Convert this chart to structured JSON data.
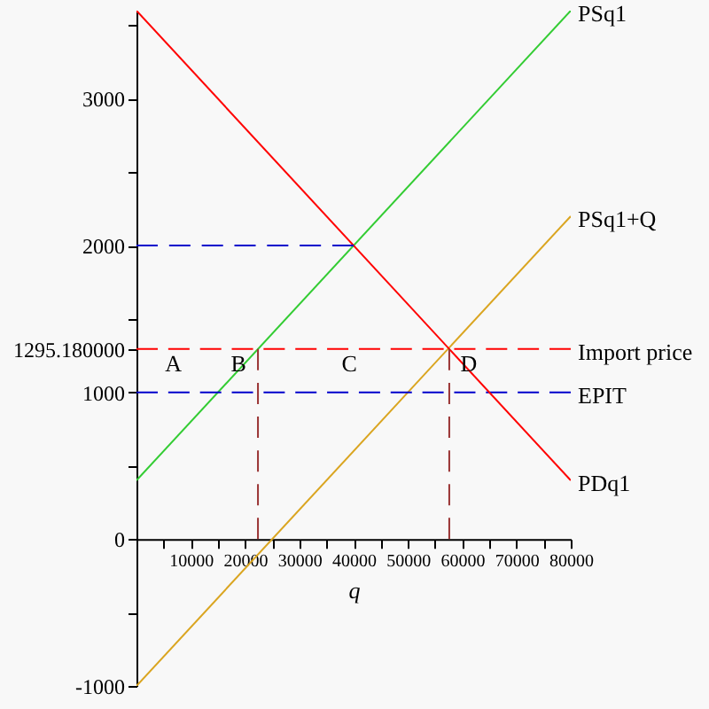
{
  "chart_data": {
    "type": "line",
    "xlabel": "q",
    "grid": false,
    "marker": "none",
    "xlim": [
      0,
      80000
    ],
    "ylim": [
      -1000,
      3600
    ],
    "xticks": [
      {
        "value": 5000,
        "label": null
      },
      10000,
      {
        "value": 15000,
        "label": null
      },
      20000,
      {
        "value": 25000,
        "label": null
      },
      30000,
      {
        "value": 35000,
        "label": null
      },
      40000,
      {
        "value": 45000,
        "label": null
      },
      50000,
      {
        "value": 55000,
        "label": null
      },
      60000,
      {
        "value": 65000,
        "label": null
      },
      70000,
      {
        "value": 75000,
        "label": null
      },
      80000
    ],
    "yticks": [
      -1000,
      {
        "value": -500,
        "label": null
      },
      0,
      {
        "value": 500,
        "label": null
      },
      1000,
      {
        "value": 1295.18,
        "label": "1295.180000"
      },
      {
        "value": 1500,
        "label": null
      },
      2000,
      {
        "value": 2500,
        "label": null
      },
      3000,
      {
        "value": 3500,
        "label": null
      }
    ],
    "series": [
      {
        "name": "PSq1",
        "color": "#33cc33",
        "line_style": "solid",
        "x": [
          0,
          80000
        ],
        "values": [
          400,
          3600
        ]
      },
      {
        "name": "PSq1+Q",
        "color": "#daa520",
        "line_style": "solid",
        "x": [
          0,
          80000
        ],
        "values": [
          -1000,
          2200
        ]
      },
      {
        "name": "Import price",
        "color": "#ff0000",
        "line_style": "dashed",
        "x": [
          0,
          80000
        ],
        "values": [
          1295.18,
          1295.18
        ]
      },
      {
        "name": "EPIT",
        "color": "#0000cc",
        "line_style": "dashed",
        "x": [
          0,
          80000
        ],
        "values": [
          1000,
          1000
        ]
      },
      {
        "name": "PDq1",
        "color": "#ff0000",
        "line_style": "solid",
        "x": [
          0,
          80000
        ],
        "values": [
          3600,
          400
        ]
      },
      {
        "color": "#0000cc",
        "line_style": "dashed",
        "x": [
          0,
          40000
        ],
        "values": [
          2000,
          2000
        ]
      },
      {
        "color": "#993333",
        "line_style": "dashed",
        "x": [
          22379.5,
          22379.5
        ],
        "values": [
          0,
          1295.18
        ]
      },
      {
        "color": "#993333",
        "line_style": "dashed",
        "x": [
          57620.5,
          57620.5
        ],
        "values": [
          0,
          1295.18
        ]
      }
    ],
    "annotations": [
      "A",
      "B",
      "C",
      "D"
    ]
  }
}
